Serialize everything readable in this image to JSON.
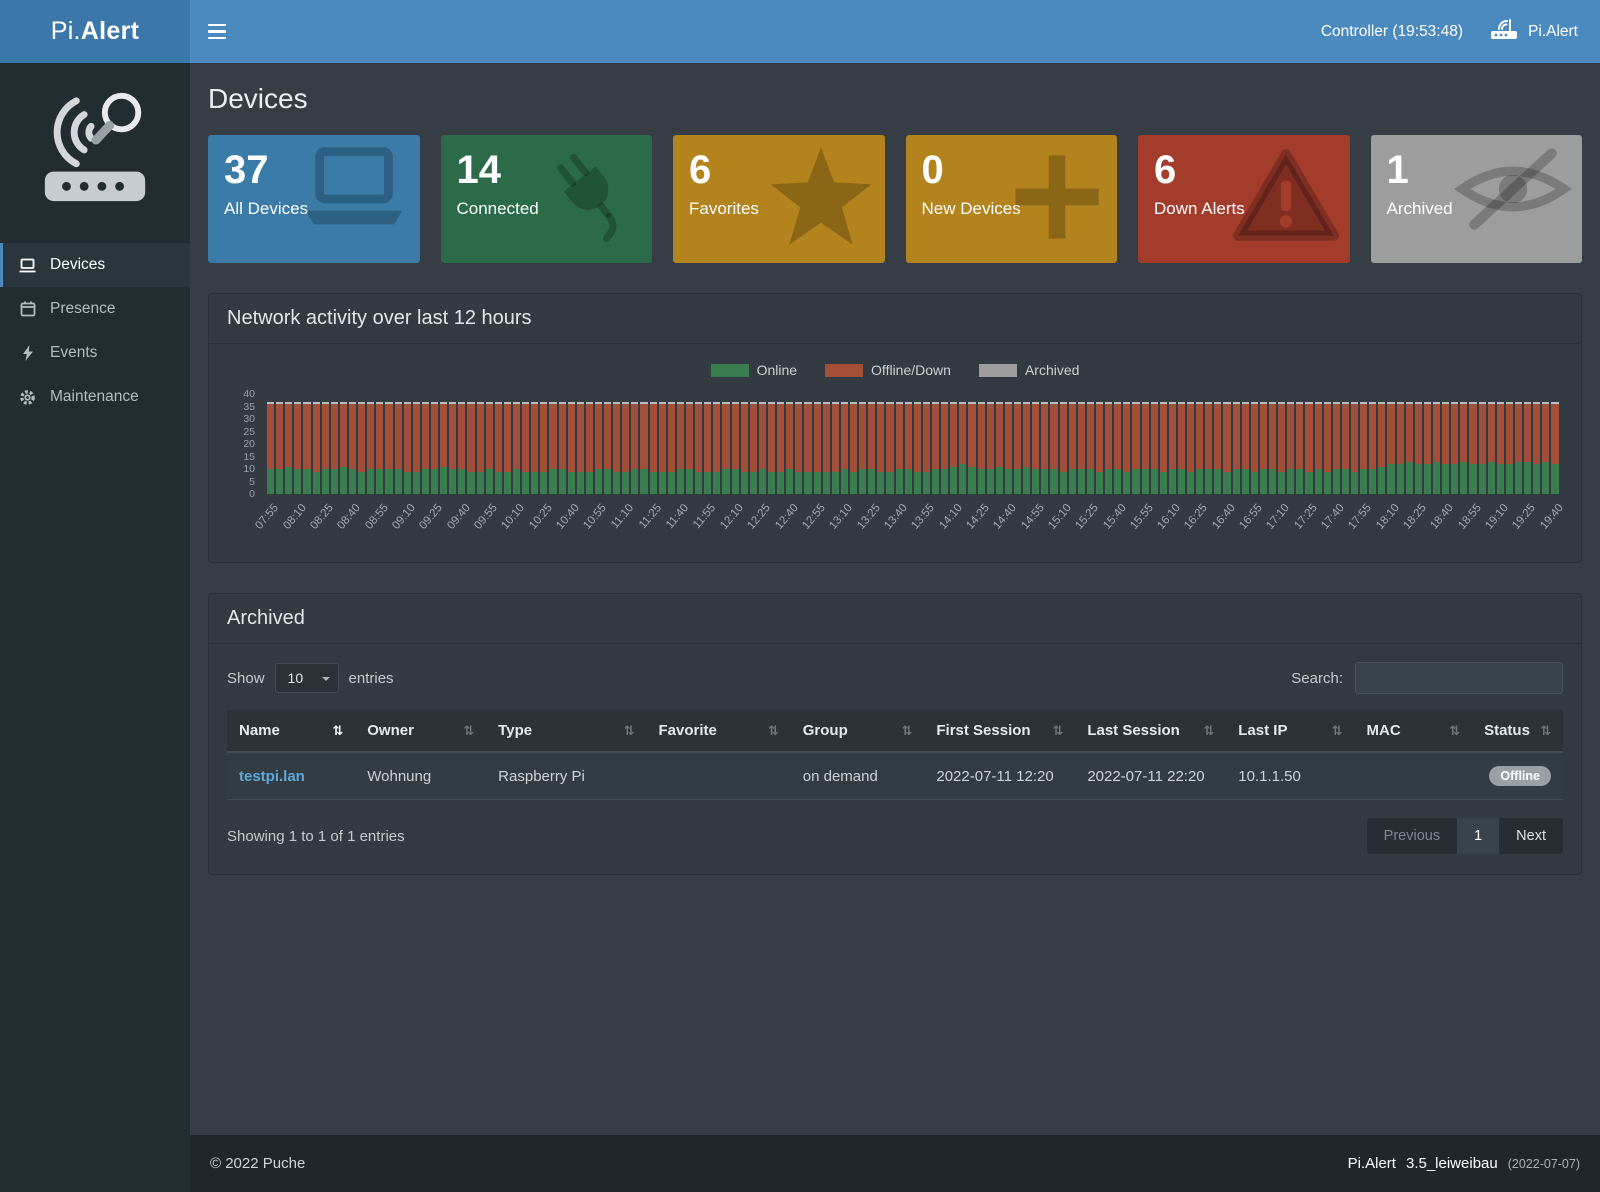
{
  "header": {
    "app_prefix": "Pi.",
    "app_suffix": "Alert",
    "controller": "Controller (19:53:48)",
    "brand": "Pi.Alert"
  },
  "sidebar": {
    "items": [
      {
        "label": "Devices",
        "icon": "laptop-icon",
        "active": true
      },
      {
        "label": "Presence",
        "icon": "calendar-icon",
        "active": false
      },
      {
        "label": "Events",
        "icon": "bolt-icon",
        "active": false
      },
      {
        "label": "Maintenance",
        "icon": "gear-icon",
        "active": false
      }
    ]
  },
  "page": {
    "title": "Devices"
  },
  "cards": [
    {
      "value": "37",
      "label": "All Devices",
      "color": "#3a7ca7",
      "icon": "laptop-icon"
    },
    {
      "value": "14",
      "label": "Connected",
      "color": "#2b6b4a",
      "icon": "plug-icon"
    },
    {
      "value": "6",
      "label": "Favorites",
      "color": "#b3831d",
      "icon": "star-icon"
    },
    {
      "value": "0",
      "label": "New Devices",
      "color": "#b3831d",
      "icon": "plus-icon"
    },
    {
      "value": "6",
      "label": "Down Alerts",
      "color": "#a43c2c",
      "icon": "warning-icon"
    },
    {
      "value": "1",
      "label": "Archived",
      "color": "#9d9d9d",
      "icon": "eye-slash-icon"
    }
  ],
  "activity": {
    "title": "Network activity over last 12 hours",
    "legend": [
      {
        "label": "Online",
        "color": "#3a7d4f"
      },
      {
        "label": "Offline/Down",
        "color": "#a34e37"
      },
      {
        "label": "Archived",
        "color": "#9e9e9e"
      }
    ]
  },
  "chart_data": {
    "type": "bar",
    "stacked": true,
    "title": "Network activity over last 12 hours",
    "xlabel": "",
    "ylabel": "",
    "ylim": [
      0,
      40
    ],
    "yticks": [
      0,
      5,
      10,
      15,
      20,
      25,
      30,
      35,
      40
    ],
    "x_tick_every": 3,
    "legend_position": "top",
    "x": [
      "07:55",
      "08:00",
      "08:05",
      "08:10",
      "08:15",
      "08:20",
      "08:25",
      "08:30",
      "08:35",
      "08:40",
      "08:45",
      "08:50",
      "08:55",
      "09:00",
      "09:05",
      "09:10",
      "09:15",
      "09:20",
      "09:25",
      "09:30",
      "09:35",
      "09:40",
      "09:45",
      "09:50",
      "09:55",
      "10:00",
      "10:05",
      "10:10",
      "10:15",
      "10:20",
      "10:25",
      "10:30",
      "10:35",
      "10:40",
      "10:45",
      "10:50",
      "10:55",
      "11:00",
      "11:05",
      "11:10",
      "11:15",
      "11:20",
      "11:25",
      "11:30",
      "11:35",
      "11:40",
      "11:45",
      "11:50",
      "11:55",
      "12:00",
      "12:05",
      "12:10",
      "12:15",
      "12:20",
      "12:25",
      "12:30",
      "12:35",
      "12:40",
      "12:45",
      "12:50",
      "12:55",
      "13:00",
      "13:05",
      "13:10",
      "13:15",
      "13:20",
      "13:25",
      "13:30",
      "13:35",
      "13:40",
      "13:45",
      "13:50",
      "13:55",
      "14:00",
      "14:05",
      "14:10",
      "14:15",
      "14:20",
      "14:25",
      "14:30",
      "14:35",
      "14:40",
      "14:45",
      "14:50",
      "14:55",
      "15:00",
      "15:05",
      "15:10",
      "15:15",
      "15:20",
      "15:25",
      "15:30",
      "15:35",
      "15:40",
      "15:45",
      "15:50",
      "15:55",
      "16:00",
      "16:05",
      "16:10",
      "16:15",
      "16:20",
      "16:25",
      "16:30",
      "16:35",
      "16:40",
      "16:45",
      "16:50",
      "16:55",
      "17:00",
      "17:05",
      "17:10",
      "17:15",
      "17:20",
      "17:25",
      "17:30",
      "17:35",
      "17:40",
      "17:45",
      "17:50",
      "17:55",
      "18:00",
      "18:05",
      "18:10",
      "18:15",
      "18:20",
      "18:25",
      "18:30",
      "18:35",
      "18:40",
      "18:45",
      "18:50",
      "18:55",
      "19:00",
      "19:05",
      "19:10",
      "19:15",
      "19:20",
      "19:25",
      "19:30",
      "19:35",
      "19:40"
    ],
    "series": [
      {
        "name": "Online",
        "color": "#3a7d4f",
        "values": [
          10,
          10,
          11,
          10,
          10,
          9,
          10,
          10,
          11,
          10,
          9,
          10,
          10,
          10,
          10,
          9,
          9,
          10,
          10,
          11,
          10,
          10,
          9,
          9,
          10,
          9,
          9,
          10,
          9,
          9,
          9,
          10,
          10,
          9,
          9,
          9,
          10,
          10,
          9,
          9,
          10,
          10,
          9,
          9,
          9,
          10,
          10,
          9,
          9,
          9,
          10,
          10,
          9,
          9,
          10,
          9,
          9,
          10,
          9,
          9,
          9,
          9,
          9,
          10,
          9,
          10,
          10,
          9,
          9,
          10,
          10,
          9,
          9,
          10,
          10,
          11,
          12,
          11,
          10,
          10,
          11,
          10,
          10,
          11,
          10,
          10,
          10,
          9,
          10,
          10,
          10,
          9,
          10,
          10,
          9,
          10,
          10,
          10,
          9,
          10,
          10,
          9,
          10,
          10,
          10,
          9,
          10,
          10,
          9,
          10,
          10,
          9,
          10,
          10,
          9,
          10,
          9,
          10,
          10,
          9,
          10,
          10,
          11,
          12,
          12,
          13,
          12,
          12,
          13,
          12,
          12,
          13,
          12,
          12,
          13,
          12,
          12,
          13,
          13,
          12,
          13,
          12
        ]
      },
      {
        "name": "Offline/Down",
        "color": "#a34e37",
        "values": [
          26,
          26,
          25,
          26,
          26,
          27,
          26,
          26,
          25,
          26,
          27,
          26,
          26,
          26,
          26,
          27,
          27,
          26,
          26,
          25,
          26,
          26,
          27,
          27,
          26,
          27,
          27,
          26,
          27,
          27,
          27,
          26,
          26,
          27,
          27,
          27,
          26,
          26,
          27,
          27,
          26,
          26,
          27,
          27,
          27,
          26,
          26,
          27,
          27,
          27,
          26,
          26,
          27,
          27,
          26,
          27,
          27,
          26,
          27,
          27,
          27,
          27,
          27,
          26,
          27,
          26,
          26,
          27,
          27,
          26,
          26,
          27,
          27,
          26,
          26,
          25,
          24,
          25,
          26,
          26,
          25,
          26,
          26,
          25,
          26,
          26,
          26,
          27,
          26,
          26,
          26,
          27,
          26,
          26,
          27,
          26,
          26,
          26,
          27,
          26,
          26,
          27,
          26,
          26,
          26,
          27,
          26,
          26,
          27,
          26,
          26,
          27,
          26,
          26,
          27,
          26,
          27,
          26,
          26,
          27,
          26,
          26,
          25,
          24,
          24,
          23,
          24,
          24,
          23,
          24,
          24,
          23,
          24,
          24,
          23,
          24,
          24,
          23,
          23,
          24,
          23,
          24
        ]
      },
      {
        "name": "Archived",
        "color": "#b9bdc0",
        "value_per_bar": 1
      }
    ],
    "total_per_bar": 37
  },
  "archived_panel": {
    "title": "Archived",
    "show_label": "Show",
    "page_length": "10",
    "entries_label": "entries",
    "search_label": "Search:",
    "columns": [
      "Name",
      "Owner",
      "Type",
      "Favorite",
      "Group",
      "First Session",
      "Last Session",
      "Last IP",
      "MAC",
      "Status"
    ],
    "rows": [
      {
        "name": "testpi.lan",
        "owner": "Wohnung",
        "type": "Raspberry Pi",
        "favorite": "",
        "group": "on demand",
        "first_session": "2022-07-11  12:20",
        "last_session": "2022-07-11  22:20",
        "last_ip": "10.1.1.50",
        "mac": "",
        "status": "Offline"
      }
    ],
    "info": "Showing 1 to 1 of 1 entries",
    "pagination": {
      "previous": "Previous",
      "page": "1",
      "next": "Next"
    }
  },
  "footer": {
    "copyright": "© 2022 Puche",
    "brand": "Pi.Alert",
    "version": "3.5_leiweibau",
    "date": "(2022-07-07)"
  },
  "icons": {
    "sort": "⇅"
  }
}
